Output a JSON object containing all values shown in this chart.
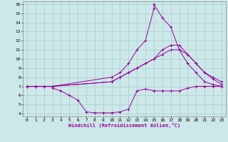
{
  "xlabel": "Windchill (Refroidissement éolien,°C)",
  "background_color": "#cce8e8",
  "line_color": "#990099",
  "grid_color": "#aacccc",
  "xlim": [
    -0.5,
    23.5
  ],
  "ylim": [
    3.7,
    16.3
  ],
  "xticks": [
    0,
    1,
    2,
    3,
    4,
    5,
    6,
    7,
    8,
    9,
    10,
    11,
    12,
    13,
    14,
    15,
    16,
    17,
    18,
    19,
    20,
    21,
    22,
    23
  ],
  "yticks": [
    4,
    5,
    6,
    7,
    8,
    9,
    10,
    11,
    12,
    13,
    14,
    15,
    16
  ],
  "lines": [
    {
      "x": [
        0,
        1,
        2,
        3,
        3,
        4,
        5,
        6,
        7,
        8,
        9,
        10,
        11,
        12,
        13,
        14,
        15,
        15,
        16,
        17,
        18,
        19,
        20,
        21,
        22,
        23
      ],
      "y": [
        7,
        7,
        7,
        7,
        6.8,
        6.5,
        6,
        5.5,
        4.2,
        4.1,
        4.1,
        4.1,
        4.2,
        4.5,
        6.5,
        6.7,
        6.5,
        6.5,
        6.5,
        6.5,
        6.5,
        6.8,
        7,
        7,
        7,
        7
      ]
    },
    {
      "x": [
        0,
        1,
        2,
        3,
        10,
        11,
        12,
        13,
        14,
        15,
        15,
        16,
        17,
        18,
        19,
        20,
        21,
        22,
        23
      ],
      "y": [
        7,
        7,
        7,
        7,
        8,
        8.5,
        9.5,
        11,
        12,
        15.5,
        16,
        14.5,
        13.5,
        11,
        9.5,
        8.5,
        7.5,
        7.2,
        7
      ]
    },
    {
      "x": [
        0,
        1,
        2,
        3,
        10,
        11,
        12,
        13,
        14,
        15,
        16,
        17,
        18,
        19,
        20,
        21,
        22,
        23
      ],
      "y": [
        7,
        7,
        7,
        7,
        7.5,
        8,
        8.5,
        9,
        9.5,
        10,
        11,
        11.5,
        11.5,
        10.5,
        9.5,
        8.5,
        7.8,
        7.2
      ]
    },
    {
      "x": [
        0,
        1,
        2,
        3,
        10,
        11,
        12,
        13,
        14,
        15,
        16,
        17,
        18,
        19,
        20,
        21,
        22,
        23
      ],
      "y": [
        7,
        7,
        7,
        7,
        7.5,
        8,
        8.5,
        9,
        9.5,
        10,
        10.5,
        11,
        11,
        10.5,
        9.5,
        8.5,
        8,
        7.5
      ]
    }
  ]
}
